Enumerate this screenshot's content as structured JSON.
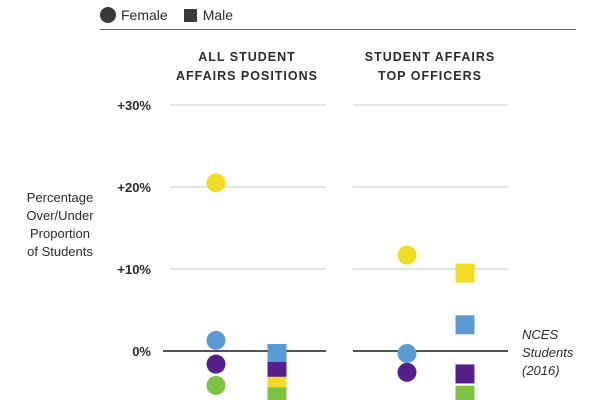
{
  "legend": {
    "female_label": "Female",
    "male_label": "Male",
    "marker_color": "#3a3a3a"
  },
  "chart_data": {
    "type": "scatter",
    "ylabel_lines": [
      "Percentage",
      "Over/Under",
      "Proportion",
      "of Students"
    ],
    "y_ticks": [
      {
        "value": 30,
        "label": "+30%"
      },
      {
        "value": 20,
        "label": "+20%"
      },
      {
        "value": 10,
        "label": "+10%"
      },
      {
        "value": 0,
        "label": "0%"
      }
    ],
    "y_range": [
      -6,
      30
    ],
    "grid": true,
    "legend_placement": "top-left",
    "reference_line": {
      "value": 0,
      "label_lines": [
        "NCES",
        "Students",
        "(2016)"
      ]
    },
    "panels": [
      {
        "title_lines": [
          "All Student",
          "Affairs Positions"
        ],
        "points": [
          {
            "gender": "Female",
            "color": "#f1dd26",
            "value": 20.5
          },
          {
            "gender": "Female",
            "color": "#5b9bd5",
            "value": 1.3
          },
          {
            "gender": "Female",
            "color": "#55208c",
            "value": -1.6
          },
          {
            "gender": "Female",
            "color": "#7dc242",
            "value": -4.2
          },
          {
            "gender": "Male",
            "color": "#5b9bd5",
            "value": -0.3
          },
          {
            "gender": "Male",
            "color": "#55208c",
            "value": -2.5
          },
          {
            "gender": "Male",
            "color": "#f1dd26",
            "value": -4.3
          },
          {
            "gender": "Male",
            "color": "#7dc242",
            "value": -5.6
          }
        ]
      },
      {
        "title_lines": [
          "Student Affairs",
          "Top Officers"
        ],
        "points": [
          {
            "gender": "Female",
            "color": "#f1dd26",
            "value": 11.7
          },
          {
            "gender": "Female",
            "color": "#5b9bd5",
            "value": -0.3
          },
          {
            "gender": "Female",
            "color": "#55208c",
            "value": -2.6
          },
          {
            "gender": "Male",
            "color": "#f1dd26",
            "value": 9.5
          },
          {
            "gender": "Male",
            "color": "#5b9bd5",
            "value": 3.2
          },
          {
            "gender": "Male",
            "color": "#55208c",
            "value": -2.8
          },
          {
            "gender": "Male",
            "color": "#7dc242",
            "value": -5.4
          }
        ]
      }
    ]
  }
}
